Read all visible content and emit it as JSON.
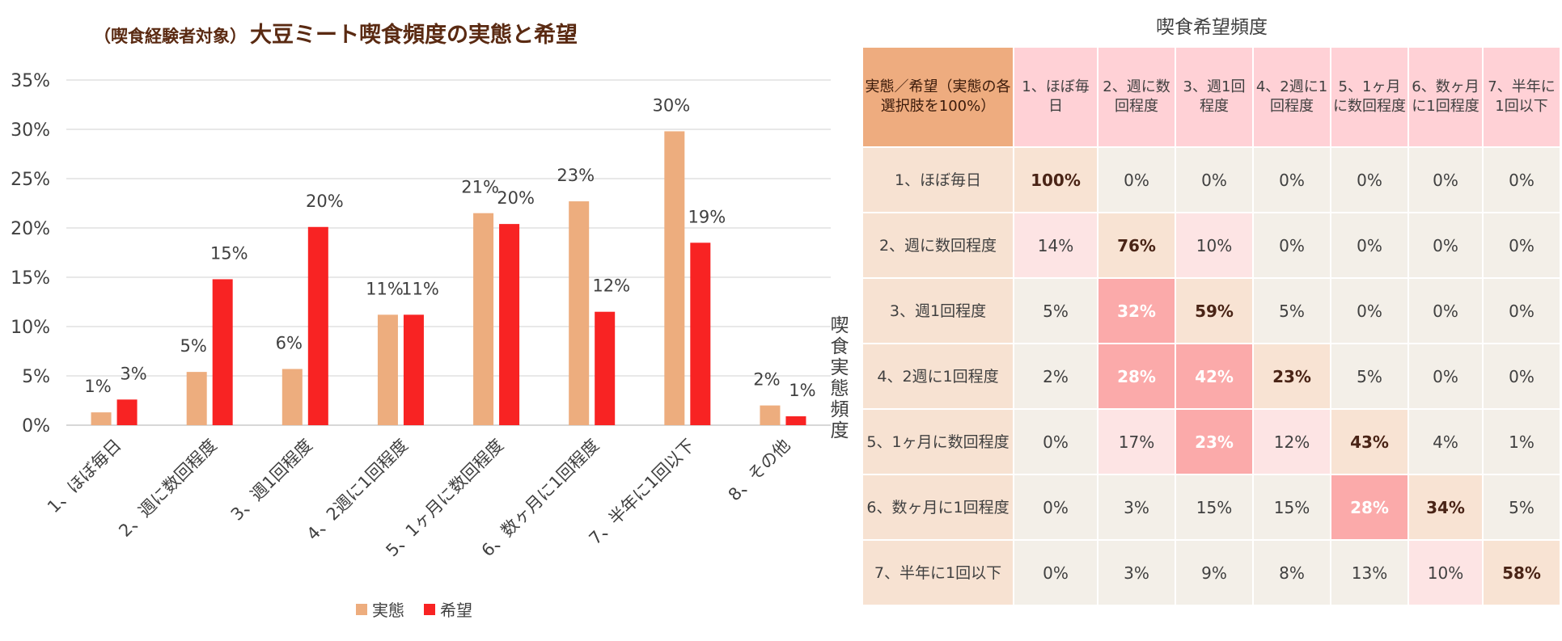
{
  "chart_data": {
    "type": "bar",
    "title_prefix": "（喫食経験者対象）",
    "title": "大豆ミート喫食頻度の実態と希望",
    "categories": [
      "1、ほぼ毎日",
      "2、週に数回程度",
      "3、週1回程度",
      "4、2週に1回程度",
      "5、1ヶ月に数回程度",
      "6、数ヶ月に1回程度",
      "7、半年に1回以下",
      "8、その他"
    ],
    "series": [
      {
        "name": "実態",
        "color": "#edad7e",
        "values": [
          1.3,
          5.4,
          5.7,
          11.2,
          21.5,
          22.7,
          29.8,
          2.0
        ],
        "labels": [
          "1%",
          "5%",
          "6%",
          "11%",
          "21%",
          "23%",
          "30%",
          "2%"
        ]
      },
      {
        "name": "希望",
        "color": "#f82323",
        "values": [
          2.6,
          14.8,
          20.1,
          11.2,
          20.4,
          11.5,
          18.5,
          0.9
        ],
        "labels": [
          "3%",
          "15%",
          "20%",
          "11%",
          "20%",
          "12%",
          "19%",
          "1%"
        ]
      }
    ],
    "ylim": [
      0,
      35
    ],
    "yticks": [
      "0%",
      "5%",
      "10%",
      "15%",
      "20%",
      "25%",
      "30%",
      "35%"
    ],
    "grid": true,
    "legend": "bottom"
  },
  "matrix": {
    "title": "喫食希望頻度",
    "row_axis_label": "喫食実態頻度",
    "corner_label": "実態／希望（実態の各選択肢を100%）",
    "columns": [
      "1、ほぼ毎日",
      "2、週に数回程度",
      "3、週1回程度",
      "4、2週に1回程度",
      "5、1ヶ月に数回程度",
      "6、数ヶ月に1回程度",
      "7、半年に1回以下"
    ],
    "rows": [
      {
        "label": "1、ほぼ毎日",
        "cells": [
          {
            "v": "100%",
            "s": 2
          },
          {
            "v": "0%",
            "s": 0
          },
          {
            "v": "0%",
            "s": 0
          },
          {
            "v": "0%",
            "s": 0
          },
          {
            "v": "0%",
            "s": 0
          },
          {
            "v": "0%",
            "s": 0
          },
          {
            "v": "0%",
            "s": 0
          }
        ]
      },
      {
        "label": "2、週に数回程度",
        "cells": [
          {
            "v": "14%",
            "s": 1
          },
          {
            "v": "76%",
            "s": 2
          },
          {
            "v": "10%",
            "s": 1
          },
          {
            "v": "0%",
            "s": 0
          },
          {
            "v": "0%",
            "s": 0
          },
          {
            "v": "0%",
            "s": 0
          },
          {
            "v": "0%",
            "s": 0
          }
        ]
      },
      {
        "label": "3、週1回程度",
        "cells": [
          {
            "v": "5%",
            "s": 0
          },
          {
            "v": "32%",
            "s": 3
          },
          {
            "v": "59%",
            "s": 2
          },
          {
            "v": "5%",
            "s": 0
          },
          {
            "v": "0%",
            "s": 0
          },
          {
            "v": "0%",
            "s": 0
          },
          {
            "v": "0%",
            "s": 0
          }
        ]
      },
      {
        "label": "4、2週に1回程度",
        "cells": [
          {
            "v": "2%",
            "s": 0
          },
          {
            "v": "28%",
            "s": 3
          },
          {
            "v": "42%",
            "s": 3
          },
          {
            "v": "23%",
            "s": 2
          },
          {
            "v": "5%",
            "s": 0
          },
          {
            "v": "0%",
            "s": 0
          },
          {
            "v": "0%",
            "s": 0
          }
        ]
      },
      {
        "label": "5、1ヶ月に数回程度",
        "cells": [
          {
            "v": "0%",
            "s": 0
          },
          {
            "v": "17%",
            "s": 1
          },
          {
            "v": "23%",
            "s": 3
          },
          {
            "v": "12%",
            "s": 1
          },
          {
            "v": "43%",
            "s": 2
          },
          {
            "v": "4%",
            "s": 0
          },
          {
            "v": "1%",
            "s": 0
          }
        ]
      },
      {
        "label": "6、数ヶ月に1回程度",
        "cells": [
          {
            "v": "0%",
            "s": 0
          },
          {
            "v": "3%",
            "s": 0
          },
          {
            "v": "15%",
            "s": 0
          },
          {
            "v": "15%",
            "s": 0
          },
          {
            "v": "28%",
            "s": 3
          },
          {
            "v": "34%",
            "s": 2
          },
          {
            "v": "5%",
            "s": 0
          }
        ]
      },
      {
        "label": "7、半年に1回以下",
        "cells": [
          {
            "v": "0%",
            "s": 0
          },
          {
            "v": "3%",
            "s": 0
          },
          {
            "v": "9%",
            "s": 0
          },
          {
            "v": "8%",
            "s": 0
          },
          {
            "v": "13%",
            "s": 0
          },
          {
            "v": "10%",
            "s": 1
          },
          {
            "v": "58%",
            "s": 2
          }
        ]
      }
    ]
  }
}
